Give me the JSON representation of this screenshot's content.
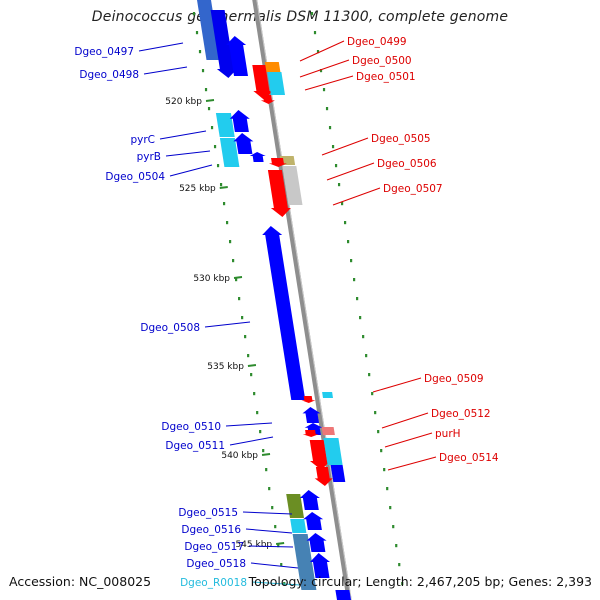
{
  "title": "Deinococcus geothermalis DSM 11300, complete genome",
  "footer": {
    "accession": "Accession: NC_008025",
    "summary": "Topology: circular; Length: 2,467,205 bp; Genes: 2,393"
  },
  "colors": {
    "backbone": "#8e8e8e",
    "plus_strand_label": "#0000cc",
    "minus_strand_label": "#dd0000",
    "rna_label": "#22bbdd",
    "scale_tick": "#2e8b2e"
  },
  "ticks": [
    "520 kbp",
    "525 kbp",
    "530 kbp",
    "535 kbp",
    "540 kbp",
    "545 kbp"
  ],
  "genes": [
    {
      "label": "Dgeo_0497",
      "strand": "+",
      "color": "#0000ff"
    },
    {
      "label": "Dgeo_0498",
      "strand": "+",
      "color": "#0000ff"
    },
    {
      "label": "Dgeo_0499",
      "strand": "-",
      "color": "#ff0000"
    },
    {
      "label": "Dgeo_0500",
      "strand": "-",
      "color": "#ff8c00"
    },
    {
      "label": "Dgeo_0501",
      "strand": "-",
      "color": "#ff0000"
    },
    {
      "label": "pyrC",
      "strand": "+",
      "color": "#0000ff"
    },
    {
      "label": "pyrB",
      "strand": "+",
      "color": "#0000ff"
    },
    {
      "label": "Dgeo_0504",
      "strand": "+",
      "color": "#0000ff"
    },
    {
      "label": "Dgeo_0505",
      "strand": "-",
      "color": "#ff0000"
    },
    {
      "label": "Dgeo_0506",
      "strand": "-",
      "color": "#ff0000"
    },
    {
      "label": "Dgeo_0507",
      "strand": "-",
      "color": "#ff0000"
    },
    {
      "label": "Dgeo_0508",
      "strand": "+",
      "color": "#0000ff"
    },
    {
      "label": "Dgeo_0509",
      "strand": "-",
      "color": "#ff0000"
    },
    {
      "label": "Dgeo_0510",
      "strand": "+",
      "color": "#0000ff"
    },
    {
      "label": "Dgeo_0511",
      "strand": "+",
      "color": "#0000ff"
    },
    {
      "label": "Dgeo_0512",
      "strand": "-",
      "color": "#ff0000"
    },
    {
      "label": "purH",
      "strand": "-",
      "color": "#ff0000"
    },
    {
      "label": "Dgeo_0514",
      "strand": "-",
      "color": "#ff0000"
    },
    {
      "label": "Dgeo_0515",
      "strand": "+",
      "color": "#0000ff"
    },
    {
      "label": "Dgeo_0516",
      "strand": "+",
      "color": "#0000ff"
    },
    {
      "label": "Dgeo_0517",
      "strand": "+",
      "color": "#0000ff"
    },
    {
      "label": "Dgeo_0518",
      "strand": "+",
      "color": "#0000ff"
    },
    {
      "label": "Dgeo_R0018",
      "strand": "+",
      "color": "#22bbdd"
    }
  ]
}
